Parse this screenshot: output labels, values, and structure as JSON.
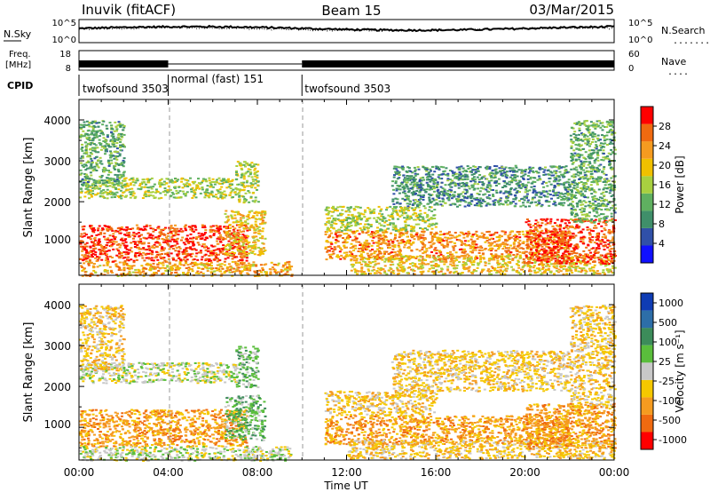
{
  "header": {
    "station": "Inuvik (fitACF)",
    "beam": "Beam 15",
    "date": "03/Mar/2015"
  },
  "noise_panel": {
    "left_label": "N.Sky",
    "left_ticks": [
      "10^5",
      "10^0"
    ],
    "right_ticks": [
      "10^5",
      "10^0"
    ],
    "right_label": "N.Search",
    "right_label_line": "........"
  },
  "freq_panel": {
    "label_line1": "Freq.",
    "label_line2": "[MHz]",
    "left_ticks": [
      "18",
      "8"
    ],
    "right_ticks": [
      "60",
      "0"
    ],
    "right_label": "Nave",
    "right_label_line": "...."
  },
  "cpid": {
    "label": "CPID",
    "segments": [
      {
        "start_hour": 0,
        "name": "twofsound 3503"
      },
      {
        "start_hour": 4,
        "name": "normal (fast) 151"
      },
      {
        "start_hour": 10,
        "name": "twofsound 3503"
      }
    ]
  },
  "time_axis": {
    "label": "Time UT",
    "ticks": [
      "00:00",
      "04:00",
      "08:00",
      "12:00",
      "16:00",
      "20:00",
      "00:00"
    ]
  },
  "power_panel": {
    "ylabel": "Slant Range [km]",
    "yticks": [
      "1000",
      "2000",
      "3000",
      "4000"
    ],
    "colorbar_label": "Power [dB]",
    "colorbar_ticks": [
      "4",
      "8",
      "12",
      "16",
      "20",
      "24",
      "28"
    ]
  },
  "velocity_panel": {
    "ylabel": "Slant Range [km]",
    "yticks": [
      "1000",
      "2000",
      "3000",
      "4000"
    ],
    "colorbar_label": "Velocity [m s⁻¹]",
    "colorbar_ticks": [
      "1000",
      "500",
      "100",
      "25",
      "-25",
      "-100",
      "-500",
      "-1000"
    ]
  },
  "chart_data": {
    "type": "heatmap",
    "x_range_hours": [
      0,
      24
    ],
    "y_range_km": [
      200,
      4500
    ],
    "power_colors": [
      "#1010ff",
      "#3050a8",
      "#3f8f6a",
      "#5fb060",
      "#a8d040",
      "#f0c000",
      "#f59b20",
      "#f06a10",
      "#ff0000"
    ],
    "velocity_colors": [
      "#0f3cb4",
      "#2d6ea8",
      "#3c8c5a",
      "#5abe3c",
      "#c8c8c8",
      "#f5c800",
      "#f59b20",
      "#f06a10",
      "#ff0000"
    ],
    "regions": [
      {
        "h0": 0,
        "h1": 7.5,
        "r0": 550,
        "r1": 1450,
        "p": 26,
        "v": -150
      },
      {
        "h0": 0,
        "h1": 7.0,
        "r0": 2100,
        "r1": 2600,
        "p": 14,
        "v": 20
      },
      {
        "h0": 6.5,
        "h1": 8.3,
        "r0": 700,
        "r1": 1800,
        "p": 18,
        "v": 60
      },
      {
        "h0": 7.0,
        "h1": 8.0,
        "r0": 2000,
        "r1": 3000,
        "p": 14,
        "v": 30
      },
      {
        "h0": 0,
        "h1": 2.0,
        "r0": 2400,
        "r1": 4000,
        "p": 10,
        "v": -60
      },
      {
        "h0": 0,
        "h1": 9.5,
        "r0": 200,
        "r1": 550,
        "p": 20,
        "v": 10
      },
      {
        "h0": 11.0,
        "h1": 22.0,
        "r0": 600,
        "r1": 1300,
        "p": 22,
        "v": -150
      },
      {
        "h0": 11.0,
        "h1": 16.0,
        "r0": 1300,
        "r1": 1900,
        "p": 14,
        "v": -80
      },
      {
        "h0": 12.0,
        "h1": 24.0,
        "r0": 250,
        "r1": 700,
        "p": 18,
        "v": -60
      },
      {
        "h0": 14.0,
        "h1": 22.0,
        "r0": 1900,
        "r1": 2900,
        "p": 8,
        "v": -40
      },
      {
        "h0": 20.0,
        "h1": 24.0,
        "r0": 500,
        "r1": 1600,
        "p": 26,
        "v": -120
      },
      {
        "h0": 22.0,
        "h1": 24.0,
        "r0": 1500,
        "r1": 4000,
        "p": 10,
        "v": -60
      }
    ]
  }
}
